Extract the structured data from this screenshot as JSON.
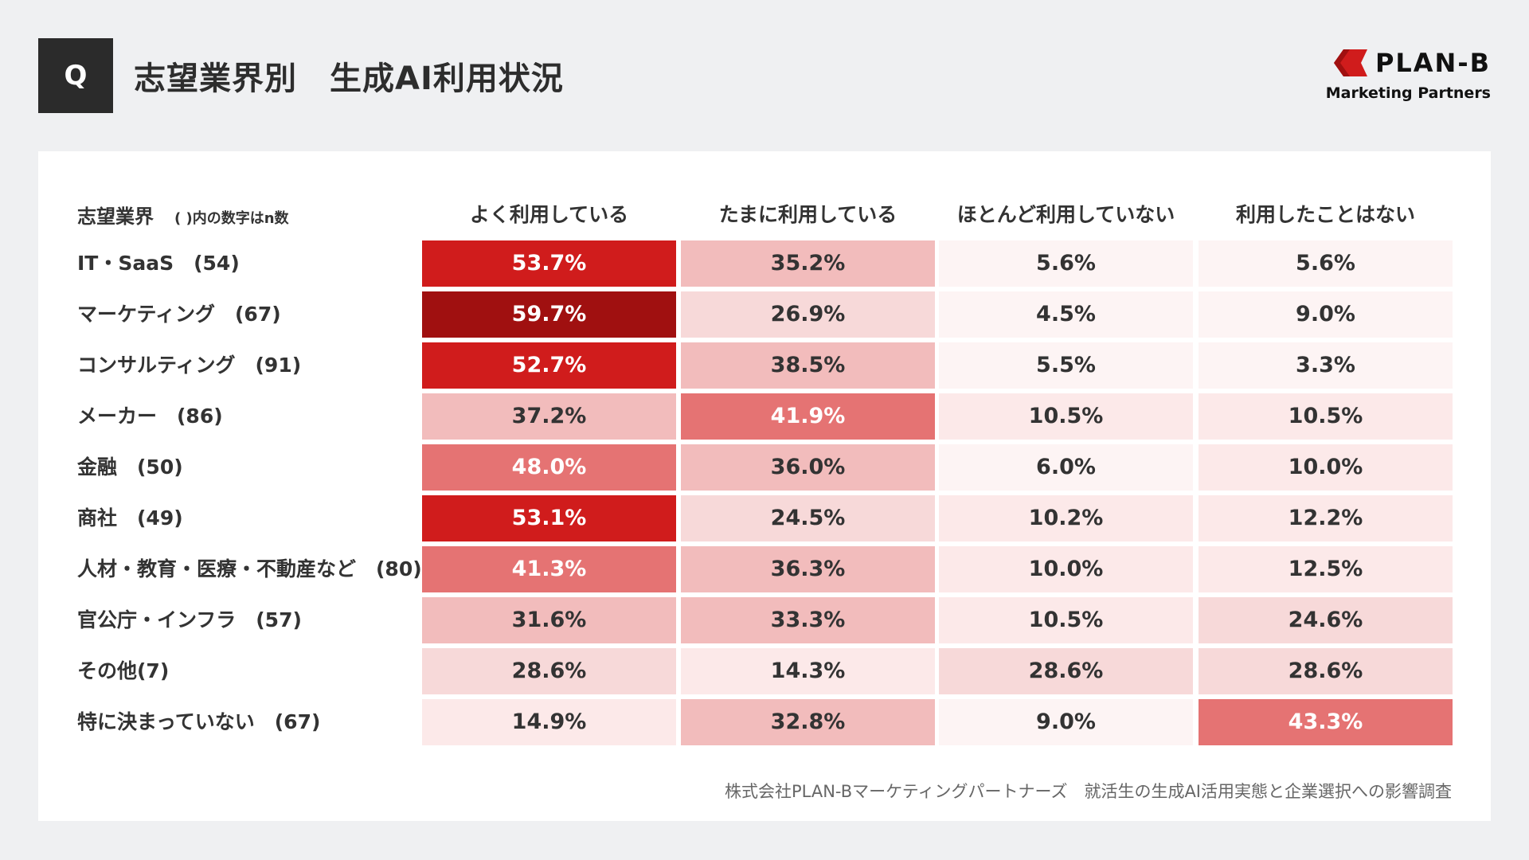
{
  "header": {
    "q_label": "Q",
    "title": "志望業界別　生成AI利用状況"
  },
  "logo": {
    "name": "PLAN-B",
    "subtitle": "Marketing Partners",
    "color": "#d01c1c"
  },
  "chart_data": {
    "type": "heatmap",
    "title": "志望業界別　生成AI利用状況",
    "row_header": "志望業界",
    "row_header_note": "( )内の数字はn数",
    "columns": [
      "よく利用している",
      "たまに利用している",
      "ほとんど利用していない",
      "利用したことはない"
    ],
    "rows": [
      {
        "label": "IT・SaaS　(54)",
        "values": [
          53.7,
          35.2,
          5.6,
          5.6
        ]
      },
      {
        "label": "マーケティング　(67)",
        "values": [
          59.7,
          26.9,
          4.5,
          9.0
        ]
      },
      {
        "label": "コンサルティング　(91)",
        "values": [
          52.7,
          38.5,
          5.5,
          3.3
        ]
      },
      {
        "label": "メーカー　(86)",
        "values": [
          37.2,
          41.9,
          10.5,
          10.5
        ]
      },
      {
        "label": "金融　(50)",
        "values": [
          48.0,
          36.0,
          6.0,
          10.0
        ]
      },
      {
        "label": "商社　(49)",
        "values": [
          53.1,
          24.5,
          10.2,
          12.2
        ]
      },
      {
        "label": "人材・教育・医療・不動産など　(80)",
        "values": [
          41.3,
          36.3,
          10.0,
          12.5
        ]
      },
      {
        "label": "官公庁・インフラ　(57)",
        "values": [
          31.6,
          33.3,
          10.5,
          24.6
        ]
      },
      {
        "label": "その他(7)",
        "values": [
          28.6,
          14.3,
          28.6,
          28.6
        ]
      },
      {
        "label": "特に決まっていない　(67)",
        "values": [
          14.9,
          32.8,
          9.0,
          43.3
        ]
      }
    ],
    "unit": "%",
    "color_scale": [
      "#fdf4f4",
      "#fce9e9",
      "#f7d9d9",
      "#f2bcbc",
      "#e57373",
      "#d01c1c",
      "#a01010"
    ]
  },
  "footer": {
    "source": "株式会社PLAN-Bマーケティングパートナーズ　就活生の生成AI活用実態と企業選択への影響調査"
  }
}
